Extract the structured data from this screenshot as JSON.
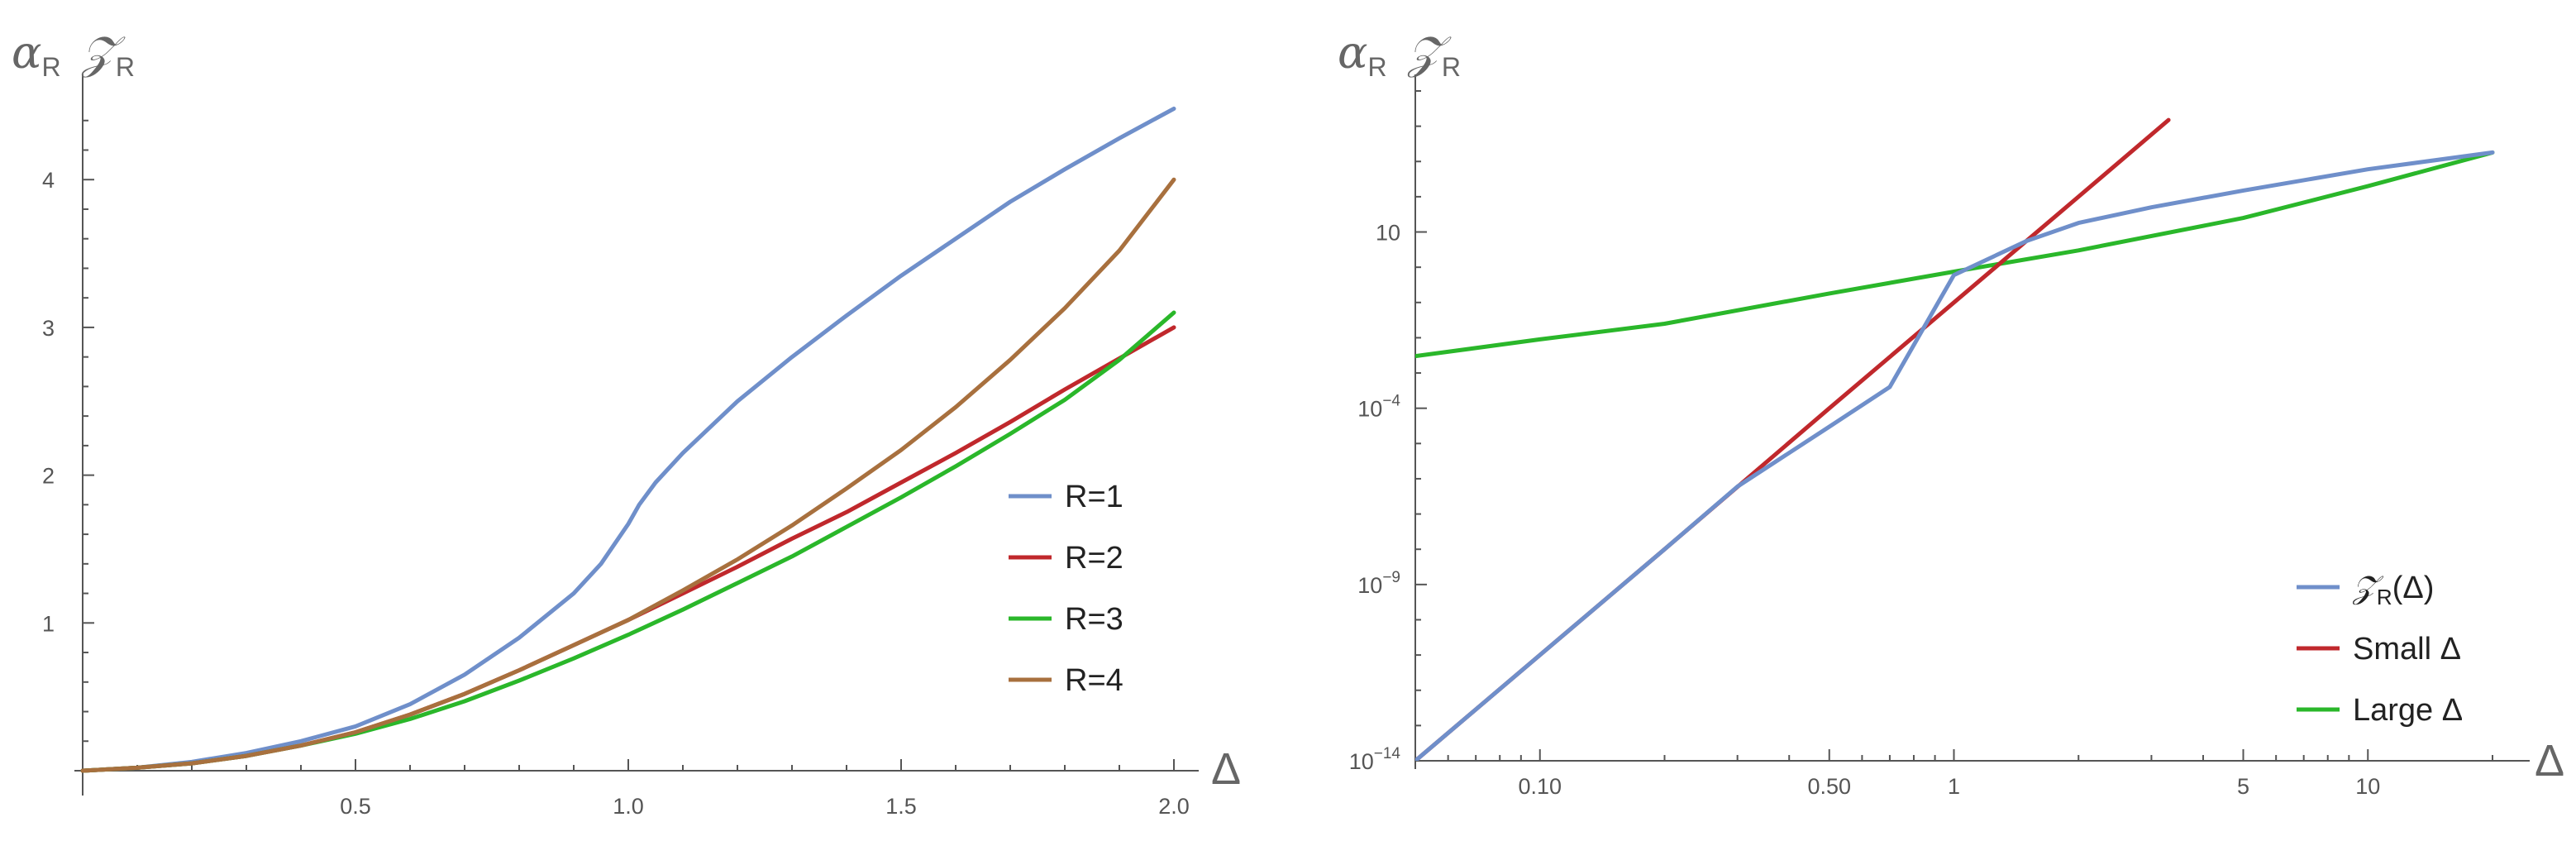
{
  "chart_data": [
    {
      "type": "line",
      "ylabel": "α_R 𝒵_R",
      "ylabel_parts": {
        "alpha": "α",
        "z": "𝒵",
        "sub": "R"
      },
      "xlabel": "Δ",
      "xlim": [
        0,
        2.0
      ],
      "ylim": [
        0,
        4.6
      ],
      "x_ticks": [
        0.5,
        1.0,
        1.5,
        2.0
      ],
      "x_tick_labels": [
        "0.5",
        "1.0",
        "1.5",
        "2.0"
      ],
      "y_ticks": [
        1,
        2,
        3,
        4
      ],
      "y_tick_labels": [
        "1",
        "2",
        "3",
        "4"
      ],
      "legend_position": "right",
      "series": [
        {
          "name": "R=1",
          "color": "#6f8fca",
          "x": [
            0,
            0.1,
            0.2,
            0.3,
            0.4,
            0.5,
            0.6,
            0.7,
            0.8,
            0.9,
            0.95,
            1.0,
            1.02,
            1.05,
            1.1,
            1.2,
            1.3,
            1.4,
            1.5,
            1.6,
            1.7,
            1.8,
            1.9,
            2.0
          ],
          "y": [
            0,
            0.02,
            0.06,
            0.12,
            0.2,
            0.3,
            0.45,
            0.65,
            0.9,
            1.2,
            1.4,
            1.67,
            1.8,
            1.95,
            2.15,
            2.5,
            2.8,
            3.08,
            3.35,
            3.6,
            3.85,
            4.07,
            4.28,
            4.48
          ]
        },
        {
          "name": "R=2",
          "color": "#c0282c",
          "x": [
            0,
            0.1,
            0.2,
            0.3,
            0.4,
            0.5,
            0.6,
            0.7,
            0.8,
            0.9,
            1.0,
            1.1,
            1.2,
            1.3,
            1.4,
            1.5,
            1.6,
            1.7,
            1.8,
            1.9,
            2.0
          ],
          "y": [
            0,
            0.02,
            0.05,
            0.1,
            0.17,
            0.26,
            0.38,
            0.52,
            0.68,
            0.85,
            1.02,
            1.2,
            1.38,
            1.57,
            1.75,
            1.95,
            2.15,
            2.36,
            2.58,
            2.79,
            3.0
          ]
        },
        {
          "name": "R=3",
          "color": "#2ab72a",
          "x": [
            0,
            0.1,
            0.2,
            0.3,
            0.4,
            0.5,
            0.6,
            0.7,
            0.8,
            0.9,
            1.0,
            1.1,
            1.2,
            1.3,
            1.4,
            1.5,
            1.6,
            1.7,
            1.8,
            1.9,
            2.0
          ],
          "y": [
            0,
            0.02,
            0.05,
            0.1,
            0.17,
            0.25,
            0.35,
            0.47,
            0.61,
            0.76,
            0.92,
            1.09,
            1.27,
            1.45,
            1.65,
            1.85,
            2.06,
            2.28,
            2.51,
            2.78,
            3.1
          ]
        },
        {
          "name": "R=4",
          "color": "#a8703e",
          "x": [
            0,
            0.1,
            0.2,
            0.3,
            0.4,
            0.5,
            0.6,
            0.7,
            0.8,
            0.9,
            1.0,
            1.1,
            1.2,
            1.3,
            1.4,
            1.5,
            1.6,
            1.7,
            1.8,
            1.9,
            2.0
          ],
          "y": [
            0,
            0.02,
            0.05,
            0.1,
            0.17,
            0.26,
            0.38,
            0.52,
            0.68,
            0.85,
            1.02,
            1.22,
            1.43,
            1.66,
            1.91,
            2.17,
            2.46,
            2.78,
            3.13,
            3.52,
            4.0
          ]
        }
      ]
    },
    {
      "type": "line",
      "ylabel": "α_R 𝒵_R",
      "ylabel_parts": {
        "alpha": "α",
        "z": "𝒵",
        "sub": "R"
      },
      "xlabel": "Δ",
      "x_scale": "log",
      "y_scale": "log",
      "xlim": [
        0.05,
        20
      ],
      "ylim": [
        1e-14,
        100000.0
      ],
      "x_ticks": [
        0.1,
        0.5,
        1,
        5,
        10
      ],
      "x_tick_labels": [
        "0.10",
        "0.50",
        "1",
        "5",
        "10"
      ],
      "y_ticks": [
        1e-14,
        1e-09,
        0.0001,
        10
      ],
      "y_tick_labels": [
        {
          "base": "10",
          "exp": "−14"
        },
        {
          "base": "10",
          "exp": "−9"
        },
        {
          "base": "10",
          "exp": "−4"
        },
        {
          "base": "10",
          "exp": ""
        }
      ],
      "legend_position": "bottom-right",
      "series": [
        {
          "name": "𝒵_R(Δ)",
          "label_parts": {
            "z": "𝒵",
            "sub": "R",
            "rest": "(Δ)"
          },
          "color": "#6f8fca",
          "x": [
            0.05,
            0.1,
            0.2,
            0.3,
            0.5,
            0.7,
            1.0,
            1.5,
            2,
            3,
            5,
            10,
            20
          ],
          "y": [
            1e-14,
            1e-11,
            1e-08,
            6e-07,
            3e-05,
            0.0004,
            0.6,
            5.6,
            18,
            50,
            150,
            600,
            1800
          ]
        },
        {
          "name": "Small Δ",
          "color": "#c0282c",
          "x": [
            0.05,
            0.1,
            0.2,
            0.5,
            1.0,
            2.0,
            3.3
          ],
          "y": [
            1e-14,
            1e-11,
            1e-08,
            0.0001,
            0.1,
            100,
            15000
          ]
        },
        {
          "name": "Large Δ",
          "color": "#2ab72a",
          "x": [
            0.05,
            0.1,
            0.2,
            0.5,
            1.0,
            2.0,
            5,
            10,
            20
          ],
          "y": [
            0.003,
            0.009,
            0.025,
            0.18,
            0.75,
            3.0,
            25,
            200,
            1800
          ]
        }
      ]
    }
  ]
}
